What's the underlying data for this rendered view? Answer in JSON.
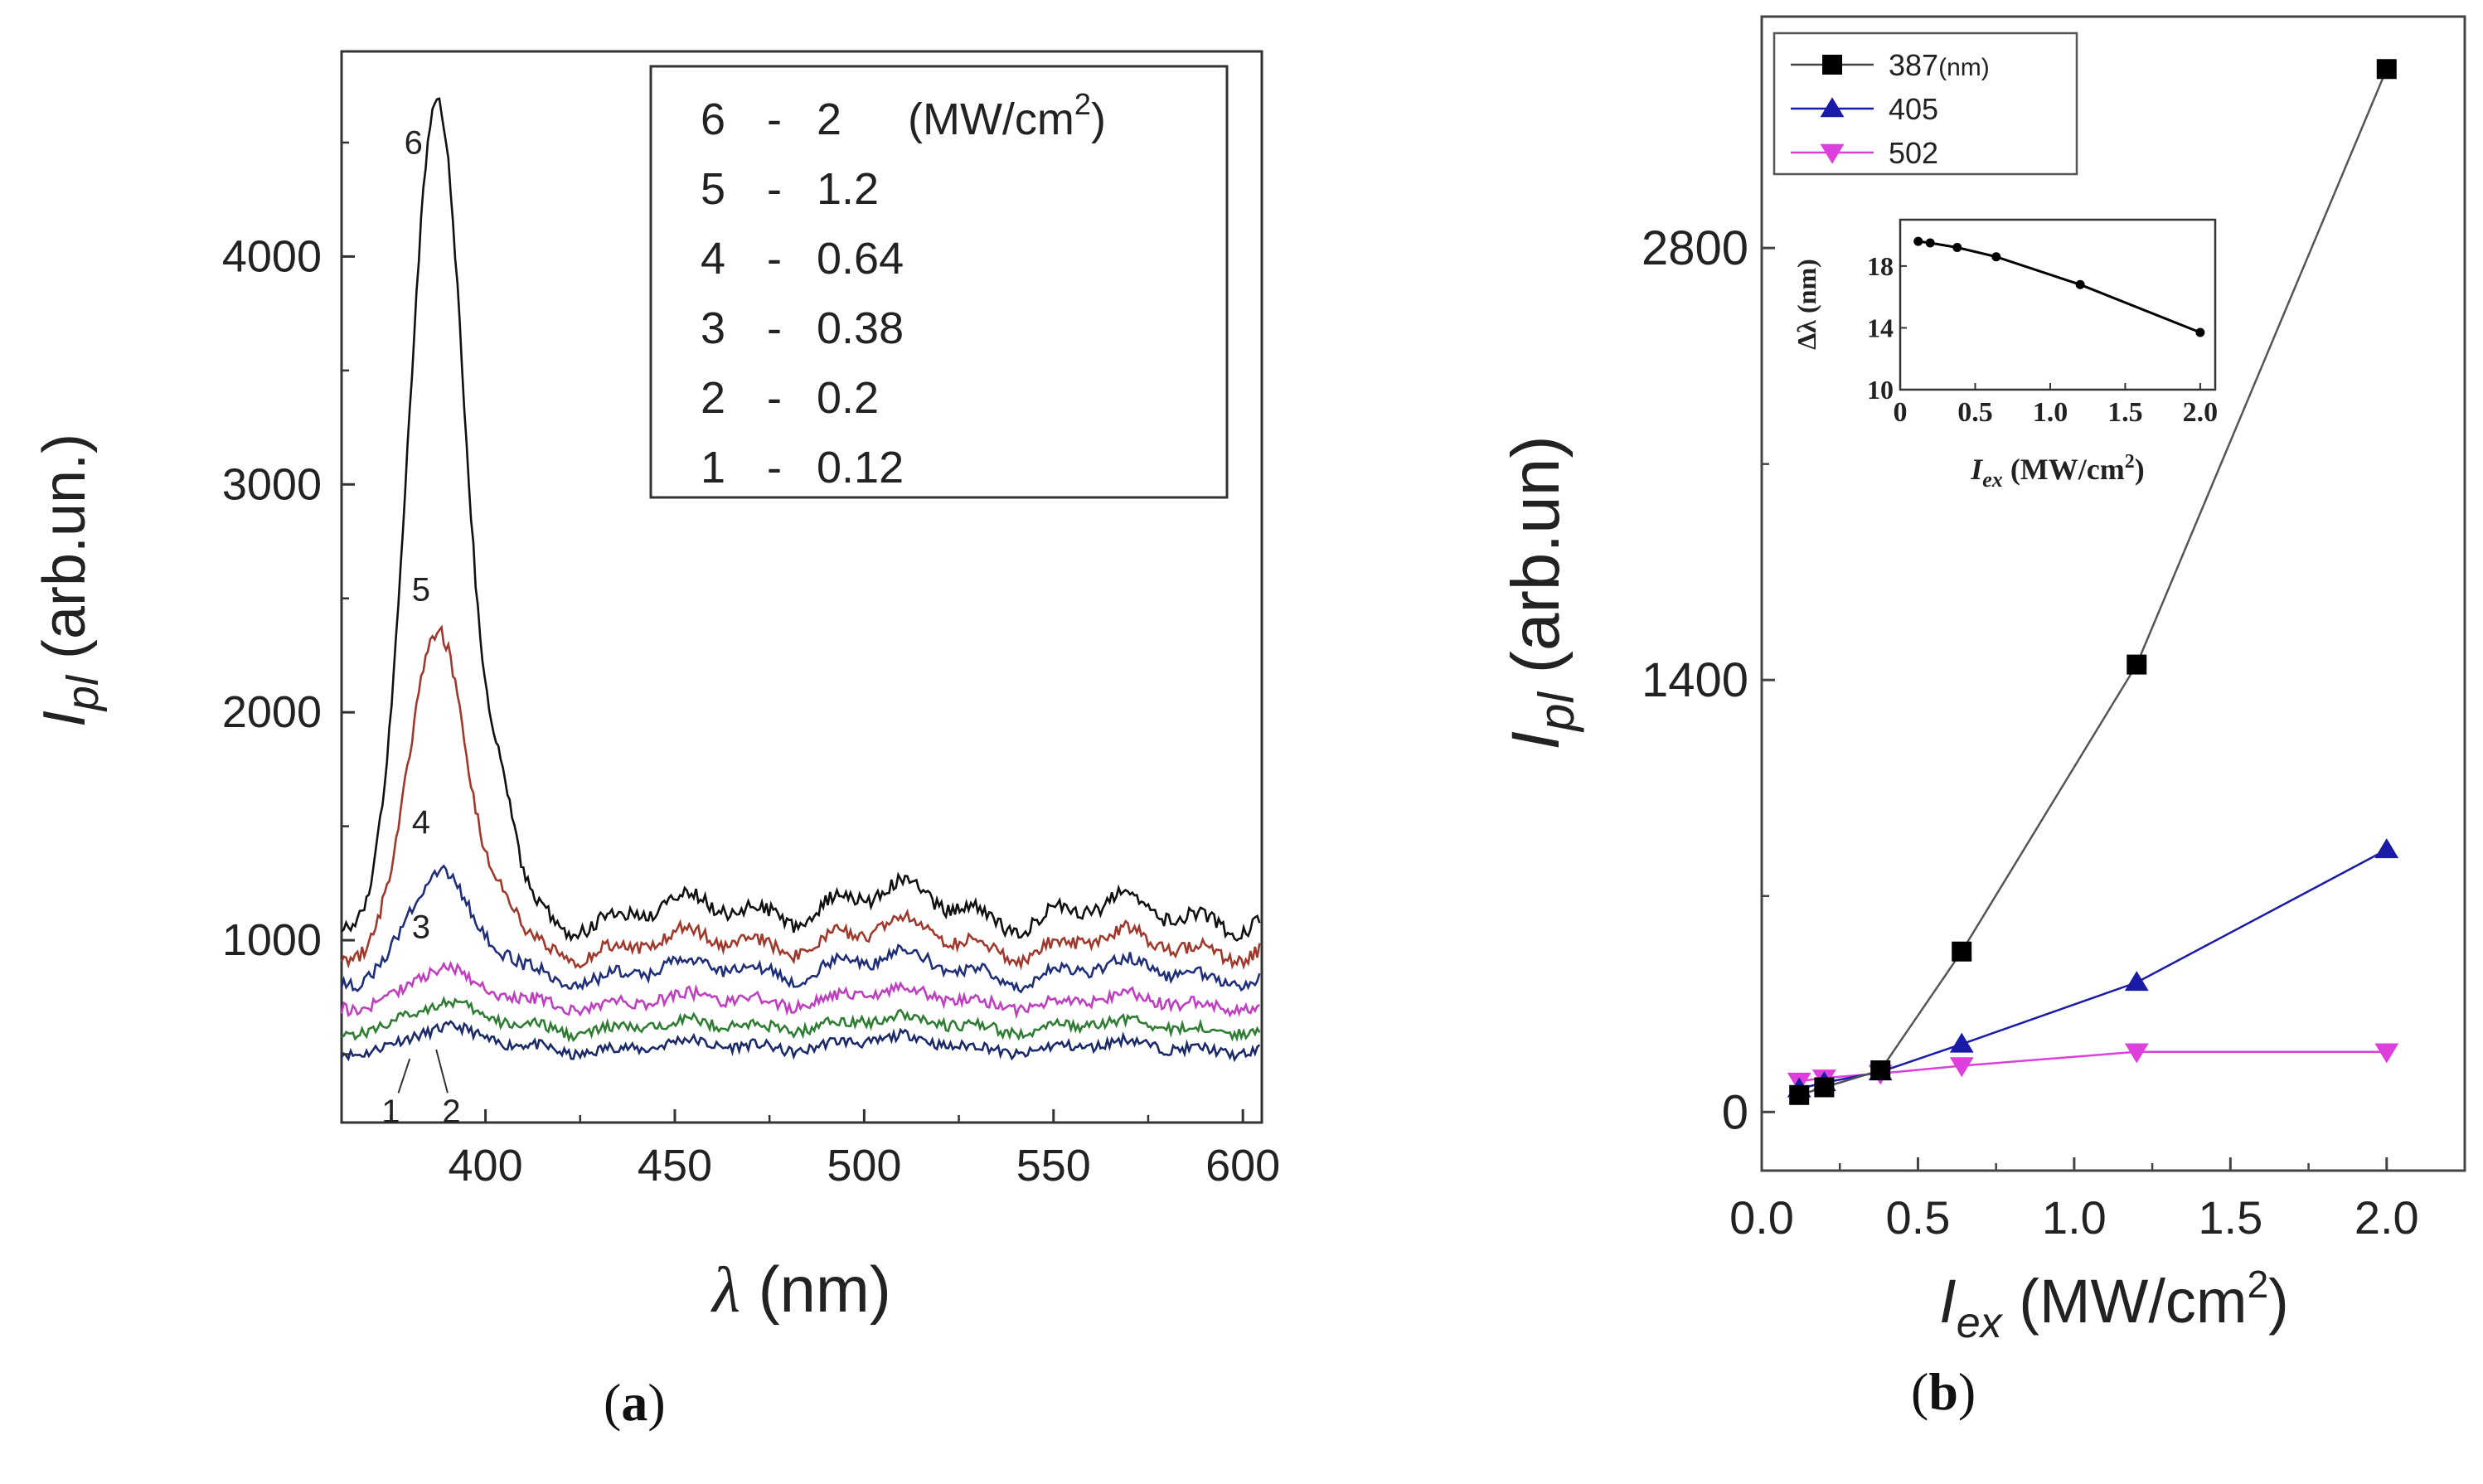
{
  "panel_labels": {
    "a": {
      "open": "(",
      "letter": "a",
      "close": ")"
    },
    "b": {
      "open": "(",
      "letter": "b",
      "close": ")"
    }
  },
  "chart_data": [
    {
      "id": "a",
      "type": "line",
      "title": "",
      "xlabel": {
        "symbol": "λ",
        "unit": " (nm)"
      },
      "ylabel": {
        "main": "I",
        "sub": "pl",
        "unit": " (arb.un.)"
      },
      "xlim": [
        362,
        605
      ],
      "ylim": [
        200,
        4900
      ],
      "xticks": [
        400,
        450,
        500,
        550,
        600
      ],
      "yticks": [
        1000,
        2000,
        3000,
        4000
      ],
      "grid": false,
      "legend": {
        "placement": "top-right",
        "unit": "(MW/cm",
        "unit_sup": "2",
        "unit_close": ")",
        "entries": [
          {
            "curve": "6",
            "dash": "-",
            "value": "2"
          },
          {
            "curve": "5",
            "dash": "-",
            "value": "1.2"
          },
          {
            "curve": "4",
            "dash": "-",
            "value": "0.64"
          },
          {
            "curve": "3",
            "dash": "-",
            "value": "0.38"
          },
          {
            "curve": "2",
            "dash": "-",
            "value": "0.2"
          },
          {
            "curve": "1",
            "dash": "-",
            "value": "0.12"
          }
        ]
      },
      "series": [
        {
          "name": "1",
          "color": "#1b2a6b",
          "base": 530,
          "peak": 80,
          "shoulder": 10,
          "tail": 60
        },
        {
          "name": "2",
          "color": "#2e7d32",
          "base": 620,
          "peak": 100,
          "shoulder": 12,
          "tail": 60
        },
        {
          "name": "3",
          "color": "#c03ec0",
          "base": 730,
          "peak": 140,
          "shoulder": 15,
          "tail": 70
        },
        {
          "name": "4",
          "color": "#1f2f7a",
          "base": 860,
          "peak": 440,
          "shoulder": 60,
          "tail": 110
        },
        {
          "name": "5",
          "color": "#a0392b",
          "base": 980,
          "peak": 1380,
          "shoulder": 180,
          "tail": 130
        },
        {
          "name": "6",
          "color": "#111111",
          "base": 1120,
          "peak": 3580,
          "shoulder": 460,
          "tail": 160
        }
      ],
      "annotations": [
        {
          "text": "6",
          "x": 381,
          "y": 4450
        },
        {
          "text": "5",
          "x": 383,
          "y": 2490
        },
        {
          "text": "4",
          "x": 383,
          "y": 1470
        },
        {
          "text": "3",
          "x": 383,
          "y": 1010
        },
        {
          "text": "1",
          "x": 375,
          "y": 200
        },
        {
          "text": "2",
          "x": 391,
          "y": 200
        }
      ]
    },
    {
      "id": "b",
      "type": "line",
      "title": "",
      "xlabel": {
        "main": "I",
        "sub": "ex",
        "unit": " (MW/cm",
        "unit_sup": "2",
        "unit_close": ")"
      },
      "ylabel": {
        "main": "I",
        "sub": "pl",
        "unit": " (arb.un)"
      },
      "xlim": [
        0,
        2.25
      ],
      "ylim": [
        -190,
        3550
      ],
      "xticks": [
        "0.0",
        "0.5",
        "1.0",
        "1.5",
        "2.0"
      ],
      "yticks": [
        0,
        1400,
        2800
      ],
      "grid": false,
      "legend": {
        "placement": "top-left"
      },
      "series": [
        {
          "name": "387",
          "name_unit": "(nm)",
          "color": "#000000",
          "marker": "square",
          "x": [
            0.12,
            0.2,
            0.38,
            0.64,
            1.2,
            2.0
          ],
          "y": [
            55,
            80,
            135,
            520,
            1450,
            3380
          ]
        },
        {
          "name": "405",
          "name_unit": "",
          "color": "#1a1aa8",
          "marker": "triangle-up",
          "x": [
            0.12,
            0.2,
            0.38,
            0.64,
            1.2,
            2.0
          ],
          "y": [
            75,
            95,
            130,
            220,
            420,
            850
          ]
        },
        {
          "name": "502",
          "name_unit": "",
          "color": "#dd3fdd",
          "marker": "triangle-down",
          "x": [
            0.12,
            0.2,
            0.38,
            0.64,
            1.2,
            2.0
          ],
          "y": [
            100,
            110,
            125,
            150,
            195,
            195
          ]
        }
      ],
      "inset": {
        "type": "line",
        "xlabel": {
          "main": "I",
          "sub": "ex",
          "unit": " (MW/cm",
          "unit_sup": "2",
          "unit_close": ")"
        },
        "ylabel": "Δλ (nm)",
        "xlim": [
          0,
          2.1
        ],
        "ylim": [
          10,
          21
        ],
        "xticks": [
          "0",
          "0.5",
          "1.0",
          "1.5",
          "2.0"
        ],
        "yticks": [
          "10",
          "14",
          "18"
        ],
        "x": [
          0.12,
          0.2,
          0.38,
          0.64,
          1.2,
          2.0
        ],
        "y": [
          19.6,
          19.5,
          19.2,
          18.6,
          16.8,
          13.7
        ],
        "color": "#000000"
      }
    }
  ]
}
